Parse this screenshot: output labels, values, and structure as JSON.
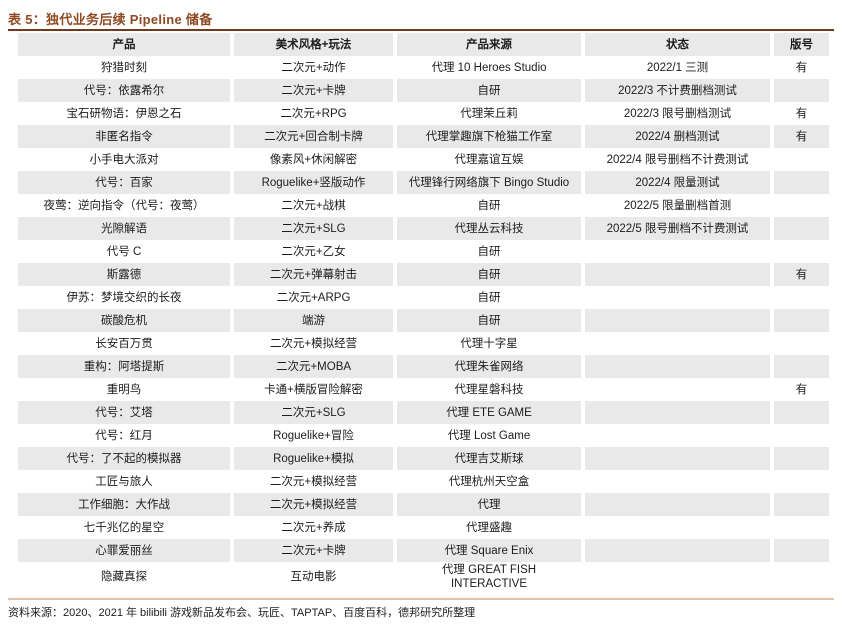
{
  "title": "表 5：独代业务后续 Pipeline 储备",
  "colors": {
    "title_text": "#8e4a22",
    "top_rule": "#6e3a1b",
    "bottom_rule": "#e3c3a6",
    "row_stripe": "#e9e9e9"
  },
  "table": {
    "columns": [
      "产品",
      "美术风格+玩法",
      "产品来源",
      "状态",
      "版号"
    ],
    "rows": [
      [
        "狩猎时刻",
        "二次元+动作",
        "代理 10 Heroes Studio",
        "2022/1 三测",
        "有"
      ],
      [
        "代号：依露希尔",
        "二次元+卡牌",
        "自研",
        "2022/3 不计费删档测试",
        ""
      ],
      [
        "宝石研物语：伊恩之石",
        "二次元+RPG",
        "代理茉丘莉",
        "2022/3 限号删档测试",
        "有"
      ],
      [
        "非匿名指令",
        "二次元+回合制卡牌",
        "代理掌趣旗下枪猫工作室",
        "2022/4 删档测试",
        "有"
      ],
      [
        "小手电大派对",
        "像素风+休闲解密",
        "代理嘉谊互娱",
        "2022/4 限号删档不计费测试",
        ""
      ],
      [
        "代号：百家",
        "Roguelike+竖版动作",
        "代理锋行网络旗下 Bingo Studio",
        "2022/4 限量测试",
        ""
      ],
      [
        "夜莺：逆向指令（代号：夜莺）",
        "二次元+战棋",
        "自研",
        "2022/5 限量删档首测",
        ""
      ],
      [
        "光隙解语",
        "二次元+SLG",
        "代理丛云科技",
        "2022/5 限号删档不计费测试",
        ""
      ],
      [
        "代号 C",
        "二次元+乙女",
        "自研",
        "",
        ""
      ],
      [
        "斯露德",
        "二次元+弹幕射击",
        "自研",
        "",
        "有"
      ],
      [
        "伊苏：梦境交织的长夜",
        "二次元+ARPG",
        "自研",
        "",
        ""
      ],
      [
        "碳酸危机",
        "端游",
        "自研",
        "",
        ""
      ],
      [
        "长安百万贯",
        "二次元+模拟经营",
        "代理十字星",
        "",
        ""
      ],
      [
        "重构：阿塔提斯",
        "二次元+MOBA",
        "代理朱雀网络",
        "",
        ""
      ],
      [
        "重明鸟",
        "卡通+横版冒险解密",
        "代理星磐科技",
        "",
        "有"
      ],
      [
        "代号：艾塔",
        "二次元+SLG",
        "代理 ETE GAME",
        "",
        ""
      ],
      [
        "代号：红月",
        "Roguelike+冒险",
        "代理 Lost Game",
        "",
        ""
      ],
      [
        "代号：了不起的模拟器",
        "Roguelike+模拟",
        "代理吉艾斯球",
        "",
        ""
      ],
      [
        "工匠与旅人",
        "二次元+模拟经营",
        "代理杭州天空盒",
        "",
        ""
      ],
      [
        "工作细胞：大作战",
        "二次元+模拟经营",
        "代理",
        "",
        ""
      ],
      [
        "七千兆亿的星空",
        "二次元+养成",
        "代理盛趣",
        "",
        ""
      ],
      [
        "心罪爱丽丝",
        "二次元+卡牌",
        "代理 Square Enix",
        "",
        ""
      ],
      [
        "隐藏真探",
        "互动电影",
        "代理 GREAT FISH\nINTERACTIVE",
        "",
        ""
      ]
    ]
  },
  "footer": {
    "source": "资料来源：2020、2021 年 bilibili 游戏新品发布会、玩匠、TAPTAP、百度百科，德邦研究所整理"
  }
}
